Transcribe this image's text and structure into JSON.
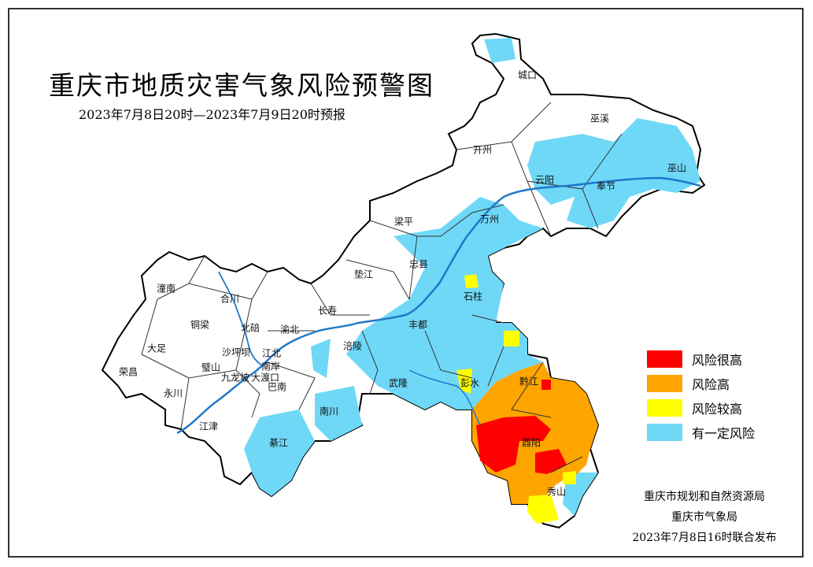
{
  "title": "重庆市地质灾害气象风险预警图",
  "subtitle": "2023年7月8日20时—2023年7月9日20时预报",
  "legend": [
    {
      "label": "风险很高",
      "color": "#ff0000"
    },
    {
      "label": "风险高",
      "color": "#ffa500"
    },
    {
      "label": "风险较高",
      "color": "#ffff00"
    },
    {
      "label": "有一定风险",
      "color": "#6fd8f7"
    }
  ],
  "issuer": {
    "line1": "重庆市规划和自然资源局",
    "line2": "重庆市气象局",
    "line3": "2023年7月8日16时联合发布"
  },
  "districts": [
    "城口",
    "巫溪",
    "开州",
    "云阳",
    "巫山",
    "奉节",
    "梁平",
    "万州",
    "忠县",
    "垫江",
    "石柱",
    "潼南",
    "合川",
    "铜梁",
    "北碚",
    "渝北",
    "长寿",
    "大足",
    "璧山",
    "沙坪坝",
    "江北",
    "荣昌",
    "南岸",
    "九龙坡",
    "大渡口",
    "巴南",
    "涪陵",
    "丰都",
    "永川",
    "武隆",
    "彭水",
    "黔江",
    "江津",
    "南川",
    "綦江",
    "酉阳",
    "秀山"
  ],
  "colors": {
    "river": "#1e78c8",
    "border": "#000000"
  }
}
